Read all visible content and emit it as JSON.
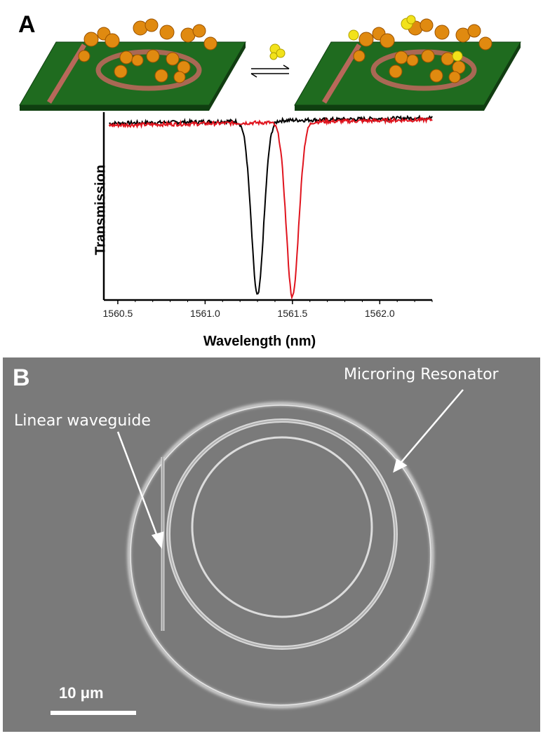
{
  "panel_a": {
    "letter": "A",
    "chart_data": {
      "type": "line",
      "xlabel": "Wavelength (nm)",
      "ylabel": "Transmission",
      "xlim": [
        1560.42,
        1562.3
      ],
      "ylim": [
        0,
        1
      ],
      "x_ticks": [
        "1560.5",
        "1561.0",
        "1561.5",
        "1562.0"
      ],
      "x_tick_values": [
        1560.5,
        1561.0,
        1561.5,
        1562.0
      ],
      "series": [
        {
          "color": "#000000",
          "dip_center": 1561.3,
          "dip_depth": 0.93,
          "dip_width": 0.05,
          "baseline_start": 0.94,
          "baseline_end": 0.97
        },
        {
          "color": "#e0141e",
          "dip_center": 1561.5,
          "dip_depth": 0.93,
          "dip_width": 0.05,
          "baseline_start": 0.93,
          "baseline_end": 0.96
        }
      ],
      "grid": false
    },
    "colors": {
      "substrate": "#1f6b1f",
      "substrate_dark": "#0f3f10",
      "protein": "#e08a10",
      "analyte": "#f2e21a",
      "ring": "#b05a45"
    }
  },
  "panel_b": {
    "letter": "B",
    "label_linear": "Linear waveguide",
    "label_ring": "Microring Resonator",
    "scalebar_text": "10 μm"
  }
}
